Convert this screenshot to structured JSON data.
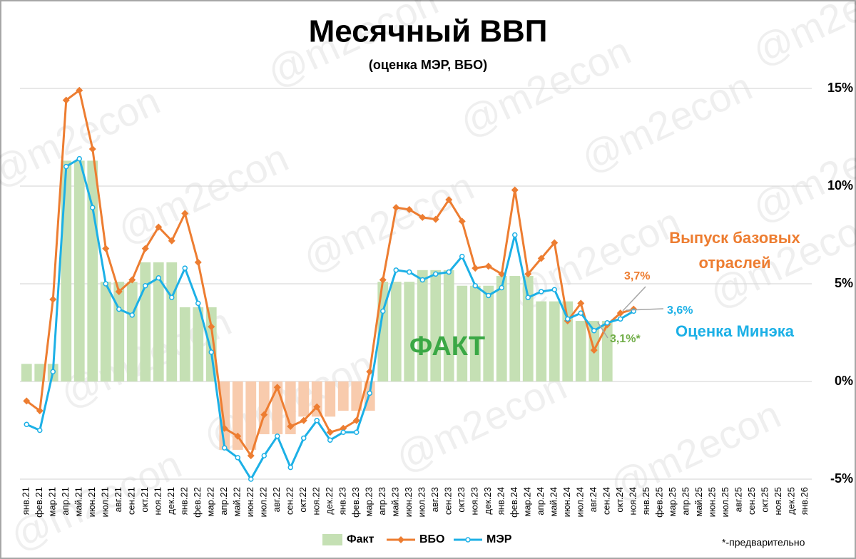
{
  "chart_data": {
    "type": "combo",
    "title": "Месячный ВВП",
    "subtitle": "(оценка МЭР, ВБО)",
    "watermark": "@m2econ",
    "footnote": "*-предварительно",
    "categories": [
      "янв.21",
      "фев.21",
      "мар.21",
      "апр.21",
      "май.21",
      "июн.21",
      "июл.21",
      "авг.21",
      "сен.21",
      "окт.21",
      "ноя.21",
      "дек.21",
      "янв.22",
      "фев.22",
      "мар.22",
      "апр.22",
      "май.22",
      "июн.22",
      "июл.22",
      "авг.22",
      "сен.22",
      "окт.22",
      "ноя.22",
      "дек.22",
      "янв.23",
      "фев.23",
      "мар.23",
      "апр.23",
      "май.23",
      "июн.23",
      "июл.23",
      "авг.23",
      "сен.23",
      "окт.23",
      "ноя.23",
      "дек.23",
      "янв.24",
      "фев.24",
      "мар.24",
      "апр.24",
      "май.24",
      "июн.24",
      "июл.24",
      "авг.24",
      "сен.24",
      "окт.24",
      "ноя.24",
      "янв.25",
      "фев.25",
      "мар.25",
      "апр.25",
      "май.25",
      "июн.25",
      "июл.25",
      "авг.25",
      "сен.25",
      "окт.25",
      "ноя.25",
      "дек.25",
      "янв.26"
    ],
    "series": [
      {
        "name": "Факт",
        "type": "bar",
        "color": "#c5e0b4",
        "negative_color": "#f8cbad",
        "values": [
          0.9,
          0.9,
          0.9,
          11.3,
          11.3,
          11.3,
          5.1,
          5.1,
          5.1,
          6.1,
          6.1,
          6.1,
          3.8,
          3.8,
          3.8,
          -3.5,
          -3.5,
          -3.5,
          -2.7,
          -2.7,
          -2.7,
          -1.8,
          -1.8,
          -1.8,
          -1.5,
          -1.5,
          -1.5,
          5.1,
          5.1,
          5.1,
          5.7,
          5.7,
          5.7,
          4.9,
          4.9,
          4.9,
          5.4,
          5.4,
          5.4,
          4.1,
          4.1,
          4.1,
          3.1,
          3.1,
          3.1,
          null,
          null,
          null,
          null,
          null,
          null,
          null,
          null,
          null,
          null,
          null,
          null,
          null,
          null,
          null
        ]
      },
      {
        "name": "ВБО",
        "type": "line",
        "marker": "diamond",
        "color": "#ed7d31",
        "values": [
          -1.0,
          -1.5,
          4.2,
          14.4,
          14.9,
          11.9,
          6.8,
          4.6,
          5.2,
          6.8,
          7.9,
          7.2,
          8.6,
          6.1,
          2.8,
          -2.4,
          -2.8,
          -3.8,
          -1.7,
          -0.3,
          -2.3,
          -2.0,
          -1.3,
          -2.6,
          -2.4,
          -2.0,
          0.5,
          5.2,
          8.9,
          8.8,
          8.4,
          8.3,
          9.3,
          8.2,
          5.8,
          5.9,
          5.5,
          9.8,
          5.5,
          6.3,
          7.1,
          3.1,
          4.0,
          1.6,
          2.9,
          3.5,
          3.7,
          null,
          null,
          null,
          null,
          null,
          null,
          null,
          null,
          null,
          null,
          null,
          null,
          null
        ]
      },
      {
        "name": "МЭР",
        "type": "line",
        "marker": "circle",
        "color": "#1cb0e6",
        "values": [
          -2.2,
          -2.5,
          0.5,
          11.0,
          11.4,
          8.9,
          5.0,
          3.7,
          3.4,
          4.9,
          5.3,
          4.3,
          5.8,
          4.0,
          1.5,
          -3.4,
          -3.9,
          -5.0,
          -3.8,
          -2.8,
          -4.4,
          -2.9,
          -2.0,
          -3.0,
          -2.6,
          -2.6,
          -0.6,
          3.6,
          5.7,
          5.6,
          5.2,
          5.5,
          5.6,
          6.4,
          4.9,
          4.4,
          4.8,
          7.5,
          4.3,
          4.6,
          4.7,
          3.2,
          3.5,
          2.6,
          3.0,
          3.2,
          3.6,
          null,
          null,
          null,
          null,
          null,
          null,
          null,
          null,
          null,
          null,
          null,
          null,
          null
        ]
      }
    ],
    "ylim": [
      -5,
      15
    ],
    "yticks": [
      {
        "value": -5,
        "label": "-5%"
      },
      {
        "value": 0,
        "label": "0%"
      },
      {
        "value": 5,
        "label": "5%"
      },
      {
        "value": 10,
        "label": "10%"
      },
      {
        "value": 15,
        "label": "15%"
      }
    ],
    "grid": true,
    "legend": "bottom",
    "annotations": [
      {
        "text": "ФАКТ",
        "color": "#3aa845"
      },
      {
        "text": "Выпуск базовых отраслей",
        "color": "#ed7d31"
      },
      {
        "text": "3,7%",
        "color": "#ed7d31"
      },
      {
        "text": "3,6%",
        "color": "#1cb0e6"
      },
      {
        "text": "Оценка Минэка",
        "color": "#1cb0e6"
      },
      {
        "text": "3,1%*",
        "color": "#70ad47"
      }
    ]
  }
}
